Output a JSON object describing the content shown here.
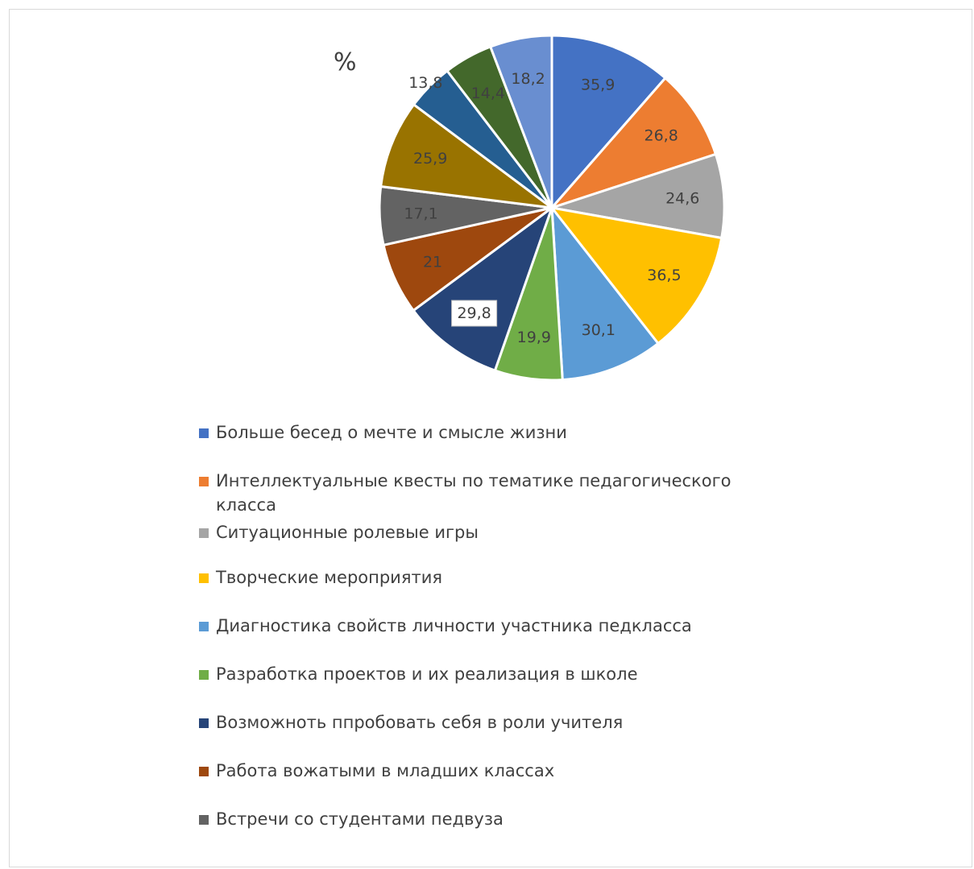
{
  "chart_data": {
    "type": "pie",
    "title": "%",
    "categories": [
      "Больше бесед о мечте и смысле жизни",
      "Интеллектуальные квесты по тематике педагогического класса",
      "Ситуационные ролевые игры",
      "Творческие мероприятия",
      "Диагностика свойств личности участника педкласса",
      "Разработка проектов и их реализация в школе",
      "Возможноть ппробовать себя в роли учителя",
      "Работа вожатыми в младших классах",
      "Встречи со студентами педвуза",
      "",
      "",
      "",
      ""
    ],
    "values": [
      35.9,
      26.8,
      24.6,
      36.5,
      30.1,
      19.9,
      29.8,
      21,
      17.1,
      25.9,
      13.8,
      14.4,
      18.2
    ],
    "labels": [
      "35,9",
      "26,8",
      "24,6",
      "36,5",
      "30,1",
      "19,9",
      "29,8",
      "21",
      "17,1",
      "25,9",
      "13,8",
      "14,4",
      "18,2"
    ],
    "colors": [
      "#4472c4",
      "#ed7d31",
      "#a5a5a5",
      "#ffc000",
      "#5b9bd5",
      "#70ad47",
      "#264478",
      "#9e480e",
      "#636363",
      "#997300",
      "#255e91",
      "#43682b",
      "#698ed0"
    ],
    "legend_visible": 9,
    "legend_position": "bottom"
  }
}
